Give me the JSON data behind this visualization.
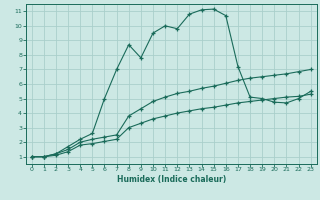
{
  "title": "",
  "xlabel": "Humidex (Indice chaleur)",
  "ylabel": "",
  "bg_color": "#cce8e4",
  "grid_color": "#aacfcb",
  "line_color": "#1a6b5a",
  "xlim": [
    -0.5,
    23.5
  ],
  "ylim": [
    0.5,
    11.5
  ],
  "xticks": [
    0,
    1,
    2,
    3,
    4,
    5,
    6,
    7,
    8,
    9,
    10,
    11,
    12,
    13,
    14,
    15,
    16,
    17,
    18,
    19,
    20,
    21,
    22,
    23
  ],
  "yticks": [
    1,
    2,
    3,
    4,
    5,
    6,
    7,
    8,
    9,
    10,
    11
  ],
  "line1_x": [
    0,
    1,
    2,
    3,
    4,
    5,
    6,
    7,
    8,
    9,
    10,
    11,
    12,
    13,
    14,
    15,
    16,
    17,
    18,
    19,
    20,
    21,
    22,
    23
  ],
  "line1_y": [
    1.0,
    1.0,
    1.2,
    1.5,
    2.0,
    2.2,
    2.35,
    2.5,
    3.8,
    4.3,
    4.8,
    5.1,
    5.35,
    5.5,
    5.7,
    5.85,
    6.05,
    6.25,
    6.4,
    6.5,
    6.6,
    6.7,
    6.85,
    7.0
  ],
  "line2_x": [
    0,
    1,
    2,
    3,
    4,
    5,
    6,
    7,
    8,
    9,
    10,
    11,
    12,
    13,
    14,
    15,
    16,
    17,
    18,
    19,
    20,
    21,
    22,
    23
  ],
  "line2_y": [
    1.0,
    1.0,
    1.1,
    1.35,
    1.8,
    1.9,
    2.05,
    2.2,
    3.0,
    3.3,
    3.6,
    3.8,
    4.0,
    4.15,
    4.3,
    4.4,
    4.55,
    4.7,
    4.8,
    4.9,
    5.0,
    5.1,
    5.15,
    5.3
  ],
  "line3_x": [
    0,
    1,
    2,
    3,
    4,
    5,
    6,
    7,
    8,
    9,
    10,
    11,
    12,
    13,
    14,
    15,
    16,
    17,
    18,
    19,
    20,
    21,
    22,
    23
  ],
  "line3_y": [
    1.0,
    1.0,
    1.2,
    1.7,
    2.2,
    2.6,
    5.0,
    7.0,
    8.7,
    7.8,
    9.5,
    10.0,
    9.8,
    10.8,
    11.1,
    11.15,
    10.7,
    7.2,
    5.1,
    5.0,
    4.75,
    4.7,
    5.0,
    5.5
  ]
}
